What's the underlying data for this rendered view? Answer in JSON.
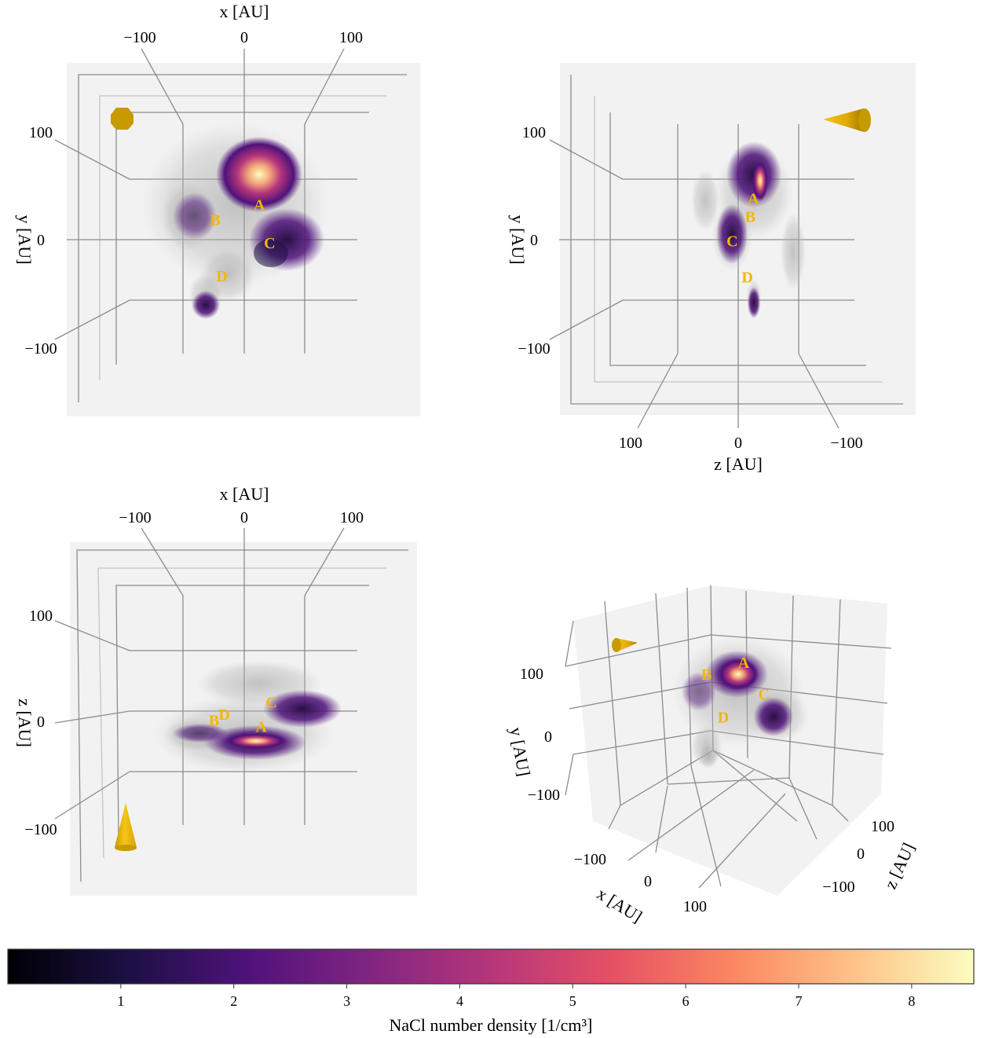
{
  "chart_data": [
    {
      "type": "volume-projection",
      "view": "xy",
      "xlabel": "x [AU]",
      "ylabel": "y [AU]",
      "x_ticks": [
        -100,
        0,
        100
      ],
      "y_ticks": [
        100,
        0,
        -100
      ],
      "blobs": [
        {
          "label": "A",
          "x": 25,
          "y": 58
        },
        {
          "label": "B",
          "x": -48,
          "y": 33
        },
        {
          "label": "C",
          "x": 42,
          "y": -5
        },
        {
          "label": "D",
          "x": -37,
          "y": -60
        }
      ],
      "camera_marker": "octagon"
    },
    {
      "type": "volume-projection",
      "view": "zy",
      "xlabel": "z [AU]",
      "ylabel": "y [AU]",
      "x_ticks": [
        100,
        0,
        -100
      ],
      "y_ticks": [
        100,
        0,
        -100
      ],
      "blobs": [
        {
          "label": "A",
          "x": -25,
          "y": 68
        },
        {
          "label": "B",
          "x": -20,
          "y": 38
        },
        {
          "label": "C",
          "x": 10,
          "y": -2
        },
        {
          "label": "D",
          "x": -15,
          "y": -62
        }
      ],
      "camera_marker": "cone-left"
    },
    {
      "type": "volume-projection",
      "view": "xz",
      "xlabel": "x [AU]",
      "ylabel": "z [AU]",
      "x_ticks": [
        -100,
        0,
        100
      ],
      "y_ticks": [
        100,
        0,
        -100
      ],
      "blobs": [
        {
          "label": "A",
          "x": 28,
          "y": -25
        },
        {
          "label": "B",
          "x": -50,
          "y": -15
        },
        {
          "label": "C",
          "x": 45,
          "y": 15
        },
        {
          "label": "D",
          "x": -33,
          "y": -5
        }
      ],
      "camera_marker": "cone-up"
    },
    {
      "type": "volume-projection",
      "view": "3d",
      "xlabel": "x [AU]",
      "ylabel": "y [AU]",
      "zlabel": "z [AU]",
      "x_ticks": [
        -100,
        0,
        100
      ],
      "y_ticks": [
        100,
        0,
        -100
      ],
      "z_ticks": [
        100,
        0,
        -100
      ],
      "blobs": [
        {
          "label": "A",
          "x": 20,
          "y": 60
        },
        {
          "label": "B",
          "x": -45,
          "y": 30
        },
        {
          "label": "C",
          "x": 40,
          "y": -5
        },
        {
          "label": "D",
          "x": -35,
          "y": -60
        }
      ],
      "camera_marker": "cone-right"
    }
  ],
  "colorbar": {
    "label": "NaCl number density [1/cm³]",
    "ticks": [
      1,
      2,
      3,
      4,
      5,
      6,
      7,
      8
    ],
    "vmin": 0.0,
    "vmax": 8.55,
    "colormap": "magma",
    "colors": [
      "#000004",
      "#1c1044",
      "#4f127b",
      "#812581",
      "#b5367a",
      "#e55064",
      "#fb8761",
      "#fec287",
      "#fcfdbf"
    ]
  },
  "colors": {
    "panel_background": "#f2f2f2",
    "grid_line": "#8c8c8c",
    "label_color": "#f2b705",
    "marker_color": "#c79a00"
  }
}
